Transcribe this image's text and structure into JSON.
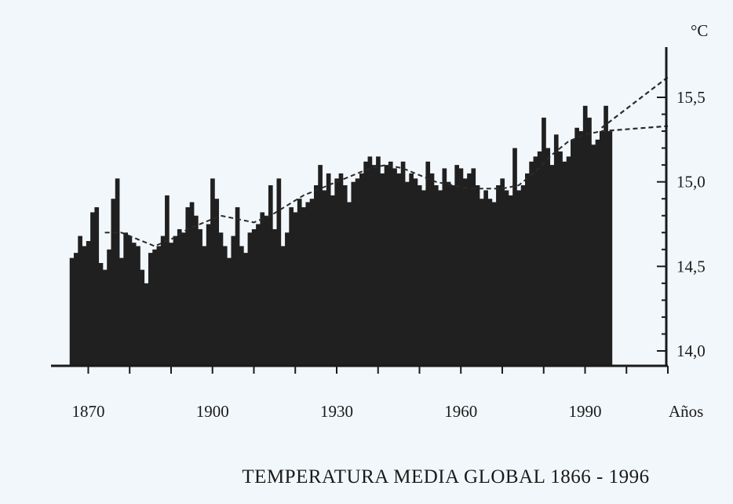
{
  "chart_data": {
    "type": "bar",
    "title": "TEMPERATURA MEDIA GLOBAL 1866 - 1996",
    "xlabel": "Años",
    "ylabel": "°C",
    "xlim": [
      1861,
      2010
    ],
    "ylim": [
      13.9,
      15.8
    ],
    "x_ticks": [
      1870,
      1900,
      1930,
      1960,
      1990
    ],
    "x_tick_labels": [
      "1870",
      "1900",
      "1930",
      "1960",
      "1990"
    ],
    "y_ticks": [
      14.0,
      14.5,
      15.0,
      15.5
    ],
    "y_tick_labels": [
      "14,0",
      "14,5",
      "15,0",
      "15,5"
    ],
    "x_axis_label": "Años",
    "y_axis_label": "°C",
    "bar_color": "#202020",
    "background": "#f2f7fb",
    "years": [
      1866,
      1867,
      1868,
      1869,
      1870,
      1871,
      1872,
      1873,
      1874,
      1875,
      1876,
      1877,
      1878,
      1879,
      1880,
      1881,
      1882,
      1883,
      1884,
      1885,
      1886,
      1887,
      1888,
      1889,
      1890,
      1891,
      1892,
      1893,
      1894,
      1895,
      1896,
      1897,
      1898,
      1899,
      1900,
      1901,
      1902,
      1903,
      1904,
      1905,
      1906,
      1907,
      1908,
      1909,
      1910,
      1911,
      1912,
      1913,
      1914,
      1915,
      1916,
      1917,
      1918,
      1919,
      1920,
      1921,
      1922,
      1923,
      1924,
      1925,
      1926,
      1927,
      1928,
      1929,
      1930,
      1931,
      1932,
      1933,
      1934,
      1935,
      1936,
      1937,
      1938,
      1939,
      1940,
      1941,
      1942,
      1943,
      1944,
      1945,
      1946,
      1947,
      1948,
      1949,
      1950,
      1951,
      1952,
      1953,
      1954,
      1955,
      1956,
      1957,
      1958,
      1959,
      1960,
      1961,
      1962,
      1963,
      1964,
      1965,
      1966,
      1967,
      1968,
      1969,
      1970,
      1971,
      1972,
      1973,
      1974,
      1975,
      1976,
      1977,
      1978,
      1979,
      1980,
      1981,
      1982,
      1983,
      1984,
      1985,
      1986,
      1987,
      1988,
      1989,
      1990,
      1991,
      1992,
      1993,
      1994,
      1995,
      1996
    ],
    "values": [
      14.55,
      14.58,
      14.68,
      14.62,
      14.65,
      14.82,
      14.85,
      14.52,
      14.48,
      14.6,
      14.9,
      15.02,
      14.55,
      14.7,
      14.68,
      14.64,
      14.62,
      14.48,
      14.4,
      14.58,
      14.6,
      14.62,
      14.68,
      14.92,
      14.64,
      14.68,
      14.72,
      14.7,
      14.85,
      14.88,
      14.8,
      14.72,
      14.62,
      14.75,
      15.02,
      14.9,
      14.7,
      14.62,
      14.55,
      14.68,
      14.85,
      14.62,
      14.58,
      14.7,
      14.72,
      14.75,
      14.82,
      14.8,
      14.98,
      14.72,
      15.02,
      14.62,
      14.7,
      14.85,
      14.82,
      14.9,
      14.85,
      14.88,
      14.9,
      14.98,
      15.1,
      14.95,
      15.05,
      14.92,
      15.02,
      15.05,
      14.98,
      14.88,
      15.0,
      15.02,
      15.05,
      15.12,
      15.15,
      15.1,
      15.15,
      15.05,
      15.1,
      15.12,
      15.08,
      15.05,
      15.12,
      15.0,
      15.05,
      15.02,
      14.98,
      14.95,
      15.12,
      15.05,
      14.98,
      14.95,
      15.08,
      15.0,
      14.98,
      15.1,
      15.08,
      15.02,
      15.05,
      15.08,
      14.98,
      14.9,
      14.95,
      14.9,
      14.88,
      14.98,
      15.02,
      14.95,
      14.92,
      15.2,
      14.95,
      14.98,
      15.05,
      15.12,
      15.15,
      15.18,
      15.38,
      15.2,
      15.1,
      15.28,
      15.18,
      15.12,
      15.15,
      15.25,
      15.32,
      15.3,
      15.45,
      15.38,
      15.22,
      15.25,
      15.3,
      15.45,
      15.3
    ],
    "trend": {
      "x": [
        1874,
        1878,
        1882,
        1886,
        1890,
        1894,
        1898,
        1902,
        1906,
        1910,
        1914,
        1918,
        1922,
        1926,
        1930,
        1934,
        1938,
        1942,
        1946,
        1950,
        1954,
        1958,
        1962,
        1966,
        1970,
        1974,
        1978,
        1982,
        1986,
        1990,
        1994
      ],
      "y": [
        14.7,
        14.7,
        14.66,
        14.62,
        14.66,
        14.72,
        14.76,
        14.8,
        14.78,
        14.76,
        14.8,
        14.86,
        14.92,
        14.96,
        15.0,
        15.04,
        15.08,
        15.1,
        15.08,
        15.04,
        15.0,
        14.98,
        14.96,
        14.96,
        14.96,
        14.98,
        15.06,
        15.16,
        15.24,
        15.28,
        15.3
      ]
    },
    "projections": [
      {
        "x": [
          1994,
          2010
        ],
        "y": [
          15.32,
          15.62
        ]
      },
      {
        "x": [
          1994,
          2010
        ],
        "y": [
          15.3,
          15.33
        ]
      }
    ],
    "grid": false,
    "legend": "none"
  }
}
